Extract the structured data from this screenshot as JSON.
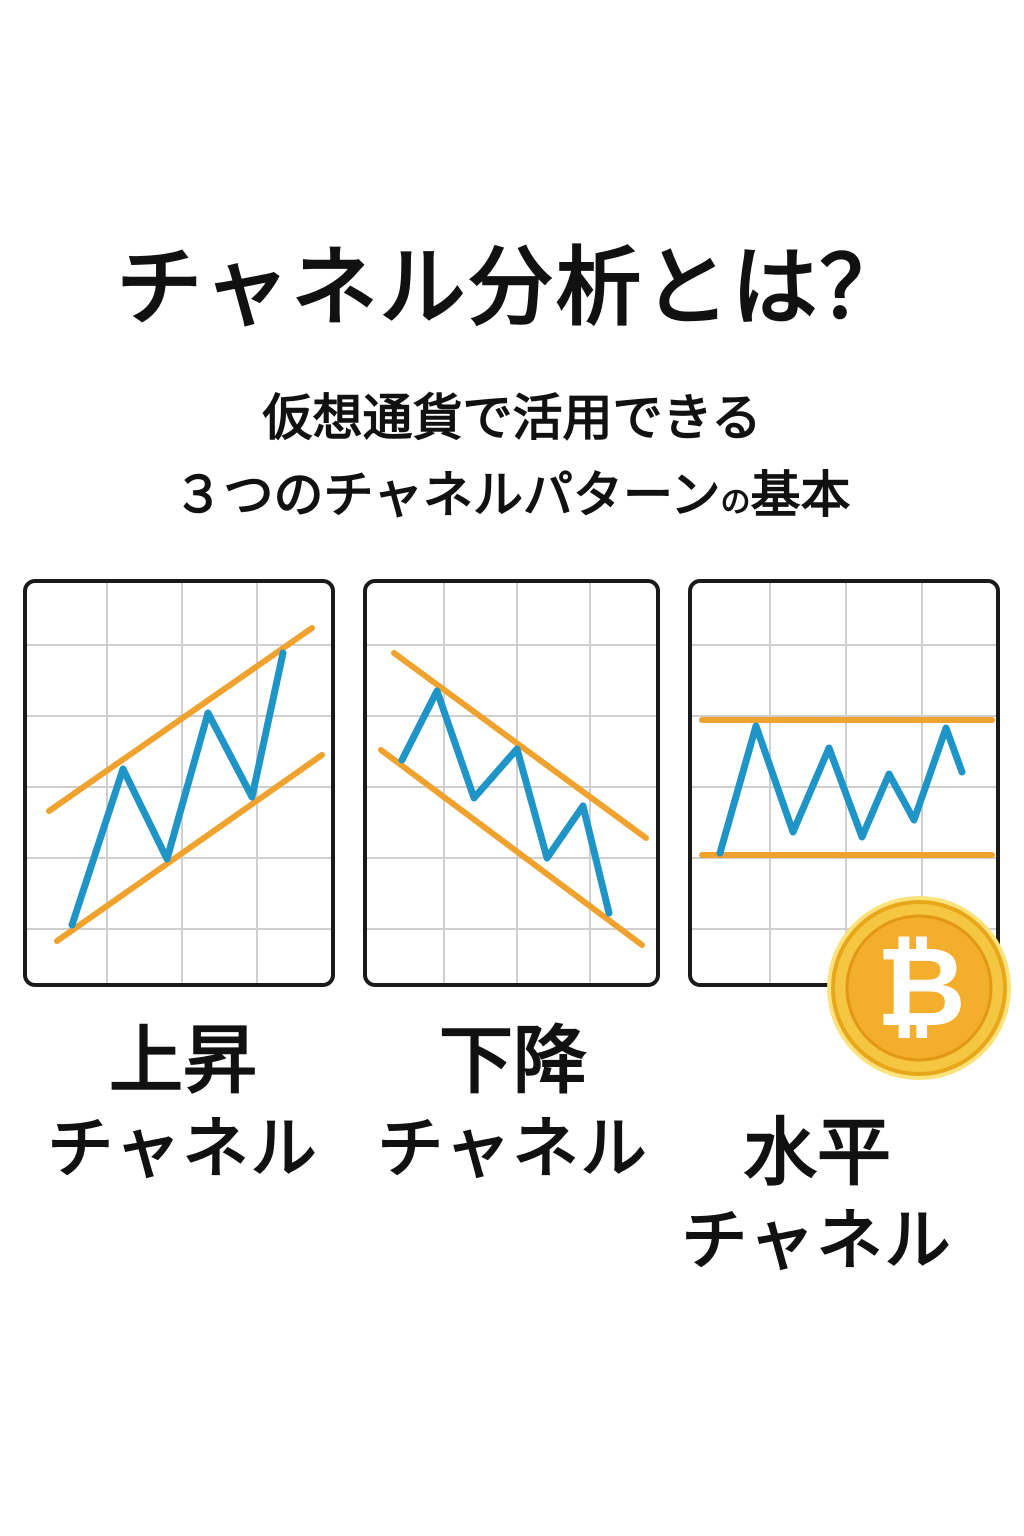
{
  "header": {
    "title": "チャネル分析とは？",
    "subtitle_line1": "仮想通貨で活用できる",
    "subtitle_line2_main": "３つのチャネルパターン",
    "subtitle_line2_small": "の",
    "subtitle_line2_end": "基本"
  },
  "colors": {
    "price_line": "#1f94c6",
    "channel_line": "#f0a22e",
    "grid": "#cfcfcf",
    "border": "#1a1a1a",
    "coin_gold": "#f3ae2c"
  },
  "channels": [
    {
      "label_line1": "上昇",
      "label_line2": "チャネル",
      "trend": "up"
    },
    {
      "label_line1": "下降",
      "label_line2": "チャネル",
      "trend": "down"
    },
    {
      "label_line1": "水平",
      "label_line2": "チャネル",
      "trend": "flat"
    }
  ],
  "icons": {
    "coin": "bitcoin-icon",
    "coin_glyph": "₿"
  }
}
